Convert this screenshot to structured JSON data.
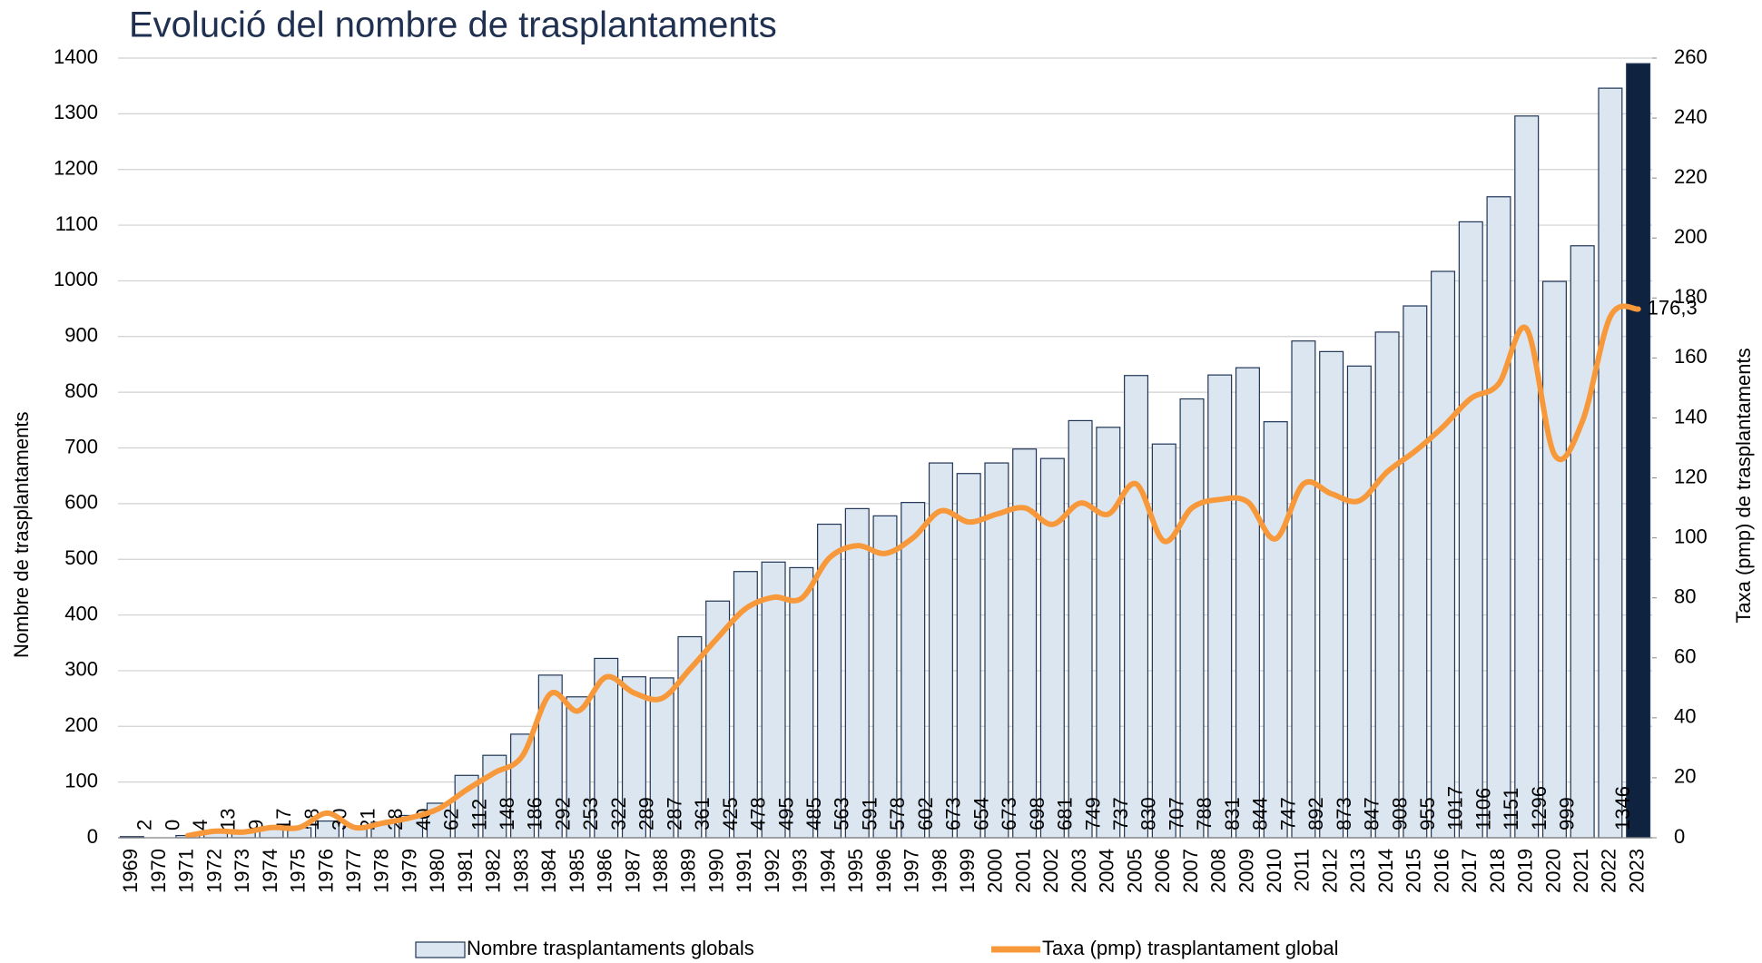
{
  "chart_data": {
    "type": "bar",
    "title": "Evolució del nombre de trasplantaments",
    "y_label": "Nombre de trasplantaments",
    "y2_label": "Taxa (pmp) de trasplantaments",
    "categories": [
      "1969",
      "1970",
      "1971",
      "1972",
      "1973",
      "1974",
      "1975",
      "1976",
      "1977",
      "1978",
      "1979",
      "1980",
      "1981",
      "1982",
      "1983",
      "1984",
      "1985",
      "1986",
      "1987",
      "1988",
      "1989",
      "1990",
      "1991",
      "1992",
      "1993",
      "1994",
      "1995",
      "1996",
      "1997",
      "1998",
      "1999",
      "2000",
      "2001",
      "2002",
      "2003",
      "2004",
      "2005",
      "2006",
      "2007",
      "2008",
      "2009",
      "2010",
      "2011",
      "2012",
      "2013",
      "2014",
      "2015",
      "2016",
      "2017",
      "2018",
      "2019",
      "2020",
      "2021",
      "2022",
      "2023"
    ],
    "ylim": [
      0,
      1400
    ],
    "yticks": [
      0,
      100,
      200,
      300,
      400,
      500,
      600,
      700,
      800,
      900,
      1000,
      1100,
      1200,
      1300,
      1400
    ],
    "y2lim": [
      0,
      260
    ],
    "y2ticks": [
      0,
      20,
      40,
      60,
      80,
      100,
      120,
      140,
      160,
      180,
      200,
      220,
      240,
      260
    ],
    "grid": true,
    "legend": "bottom",
    "series": [
      {
        "name": "Nombre trasplantaments globals",
        "type": "bar",
        "color": "#dce6f0",
        "edge_color": "#1f3556",
        "colors": [
          "#dce6f0",
          "#dce6f0",
          "#dce6f0",
          "#dce6f0",
          "#dce6f0",
          "#dce6f0",
          "#dce6f0",
          "#dce6f0",
          "#dce6f0",
          "#dce6f0",
          "#dce6f0",
          "#dce6f0",
          "#dce6f0",
          "#dce6f0",
          "#dce6f0",
          "#dce6f0",
          "#dce6f0",
          "#dce6f0",
          "#dce6f0",
          "#dce6f0",
          "#dce6f0",
          "#dce6f0",
          "#dce6f0",
          "#dce6f0",
          "#dce6f0",
          "#dce6f0",
          "#dce6f0",
          "#dce6f0",
          "#dce6f0",
          "#dce6f0",
          "#dce6f0",
          "#dce6f0",
          "#dce6f0",
          "#dce6f0",
          "#dce6f0",
          "#dce6f0",
          "#dce6f0",
          "#dce6f0",
          "#dce6f0",
          "#dce6f0",
          "#dce6f0",
          "#dce6f0",
          "#dce6f0",
          "#dce6f0",
          "#dce6f0",
          "#dce6f0",
          "#dce6f0",
          "#dce6f0",
          "#dce6f0",
          "#dce6f0",
          "#dce6f0",
          "#dce6f0",
          "#dce6f0",
          "#dce6f0",
          "#0f2340"
        ],
        "values": [
          2,
          0,
          4,
          13,
          9,
          17,
          18,
          30,
          21,
          28,
          40,
          62,
          112,
          148,
          186,
          292,
          253,
          322,
          289,
          287,
          361,
          425,
          478,
          495,
          485,
          563,
          591,
          578,
          602,
          673,
          654,
          673,
          698,
          681,
          749,
          737,
          830,
          707,
          788,
          831,
          844,
          747,
          892,
          873,
          847,
          908,
          955,
          1017,
          1106,
          1151,
          1296,
          999,
          1063,
          1346,
          1390
        ],
        "value_labels": [
          "2",
          "0",
          "4",
          "13",
          "9",
          "17",
          "18",
          "30",
          "21",
          "28",
          "40",
          "62",
          "112",
          "148",
          "186",
          "292",
          "253",
          "322",
          "289",
          "287",
          "361",
          "425",
          "478",
          "495",
          "485",
          "563",
          "591",
          "578",
          "602",
          "673",
          "654",
          "673",
          "698",
          "681",
          "749",
          "737",
          "830",
          "707",
          "788",
          "831",
          "844",
          "747",
          "892",
          "873",
          "847",
          "908",
          "955",
          "1017",
          "1106",
          "1151",
          "1296",
          "999",
          null,
          "1346",
          null
        ]
      },
      {
        "name": "Taxa (pmp) trasplantament global",
        "type": "line",
        "axis": "y2",
        "color": "#f7993a",
        "values": [
          null,
          null,
          0.7,
          2.2,
          1.9,
          3.4,
          3.4,
          8.2,
          3.4,
          4.9,
          6.7,
          9.7,
          16,
          21.7,
          27.3,
          48,
          42.3,
          53.6,
          48.3,
          46.5,
          56.2,
          66.7,
          76.4,
          80.2,
          79.8,
          93.3,
          97.4,
          94.8,
          100,
          109,
          105.3,
          107.9,
          110,
          104.5,
          111.6,
          107.9,
          118,
          98.9,
          110,
          112.8,
          112,
          99.7,
          118,
          114.7,
          112.4,
          122,
          128.9,
          137,
          146.5,
          151.4,
          169.7,
          127.7,
          138.9,
          173.8,
          176.3
        ],
        "value_labels": [
          null,
          null,
          null,
          null,
          null,
          null,
          null,
          null,
          null,
          null,
          null,
          null,
          null,
          null,
          null,
          null,
          null,
          null,
          null,
          null,
          null,
          null,
          null,
          null,
          null,
          null,
          null,
          null,
          null,
          null,
          null,
          null,
          null,
          null,
          null,
          null,
          null,
          null,
          null,
          null,
          null,
          null,
          null,
          null,
          null,
          null,
          null,
          null,
          null,
          null,
          null,
          null,
          null,
          null,
          "176,3"
        ]
      }
    ]
  }
}
